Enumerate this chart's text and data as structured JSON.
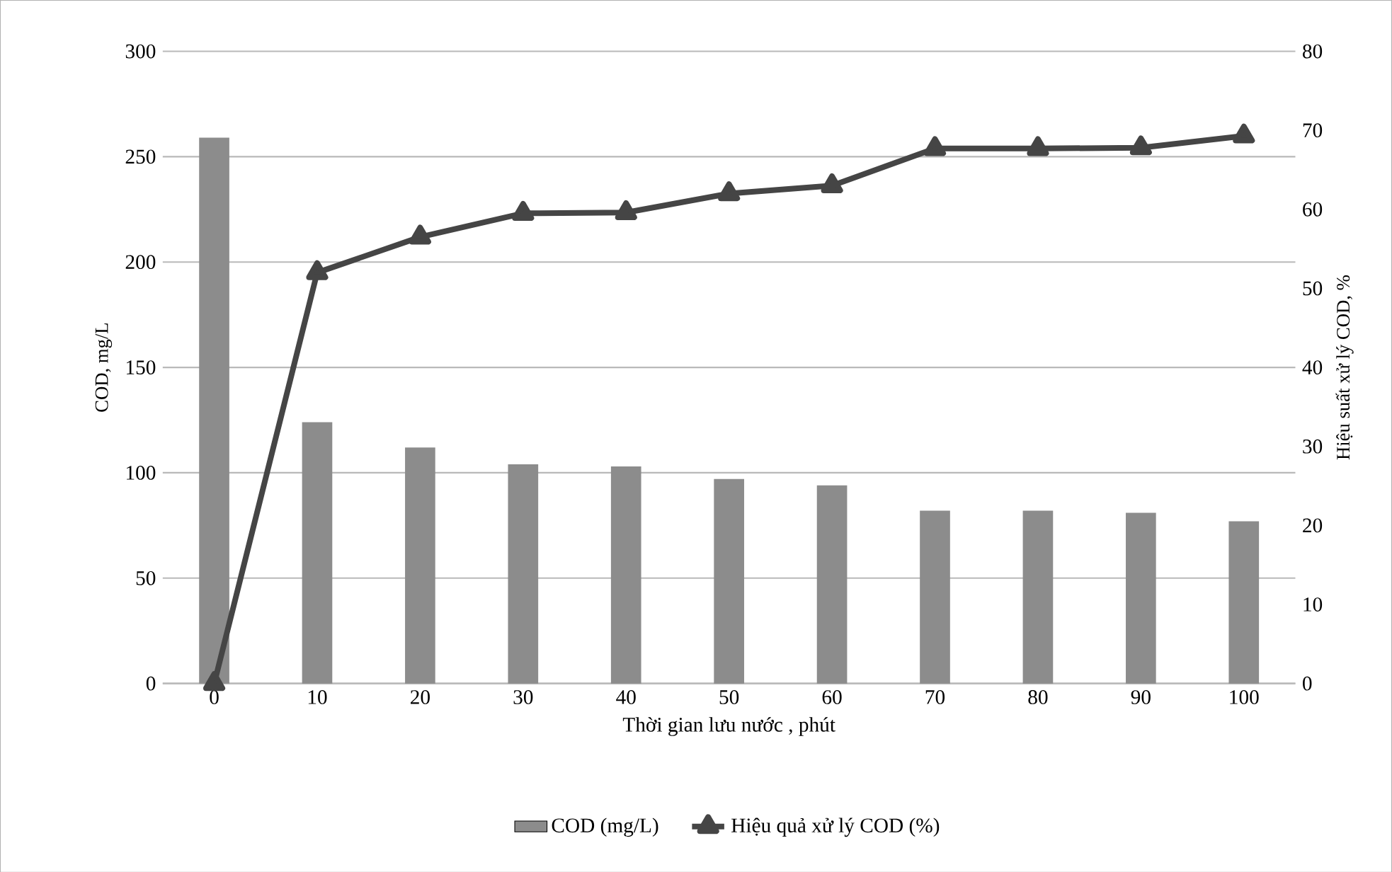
{
  "chart_data": {
    "type": "bar",
    "categories": [
      "0",
      "10",
      "20",
      "30",
      "40",
      "50",
      "60",
      "70",
      "80",
      "90",
      "100"
    ],
    "xlabel": "Thời gian lưu nước , phút",
    "ylabel": "COD, mg/L",
    "y2label": "Hiệu suất xử lý COD, %",
    "ylim": [
      0,
      300
    ],
    "yticks": [
      0,
      50,
      100,
      150,
      200,
      250,
      300
    ],
    "y2lim": [
      0,
      80
    ],
    "y2ticks": [
      0,
      10,
      20,
      30,
      40,
      50,
      60,
      70,
      80
    ],
    "grid": "y",
    "legend": "bottom",
    "series": [
      {
        "name": "COD (mg/L)",
        "color": "#8c8c8c",
        "values": [
          259,
          124,
          112,
          104,
          103,
          97,
          94,
          82,
          82,
          81,
          77
        ]
      },
      {
        "name": "Hiệu quả xử lý COD (%)",
        "type": "line",
        "axis": "y2",
        "marker": "triangle",
        "color": "#454545",
        "values": [
          0,
          52,
          56.5,
          59.5,
          59.6,
          62,
          63,
          67.7,
          67.7,
          67.8,
          69.3
        ]
      }
    ]
  }
}
